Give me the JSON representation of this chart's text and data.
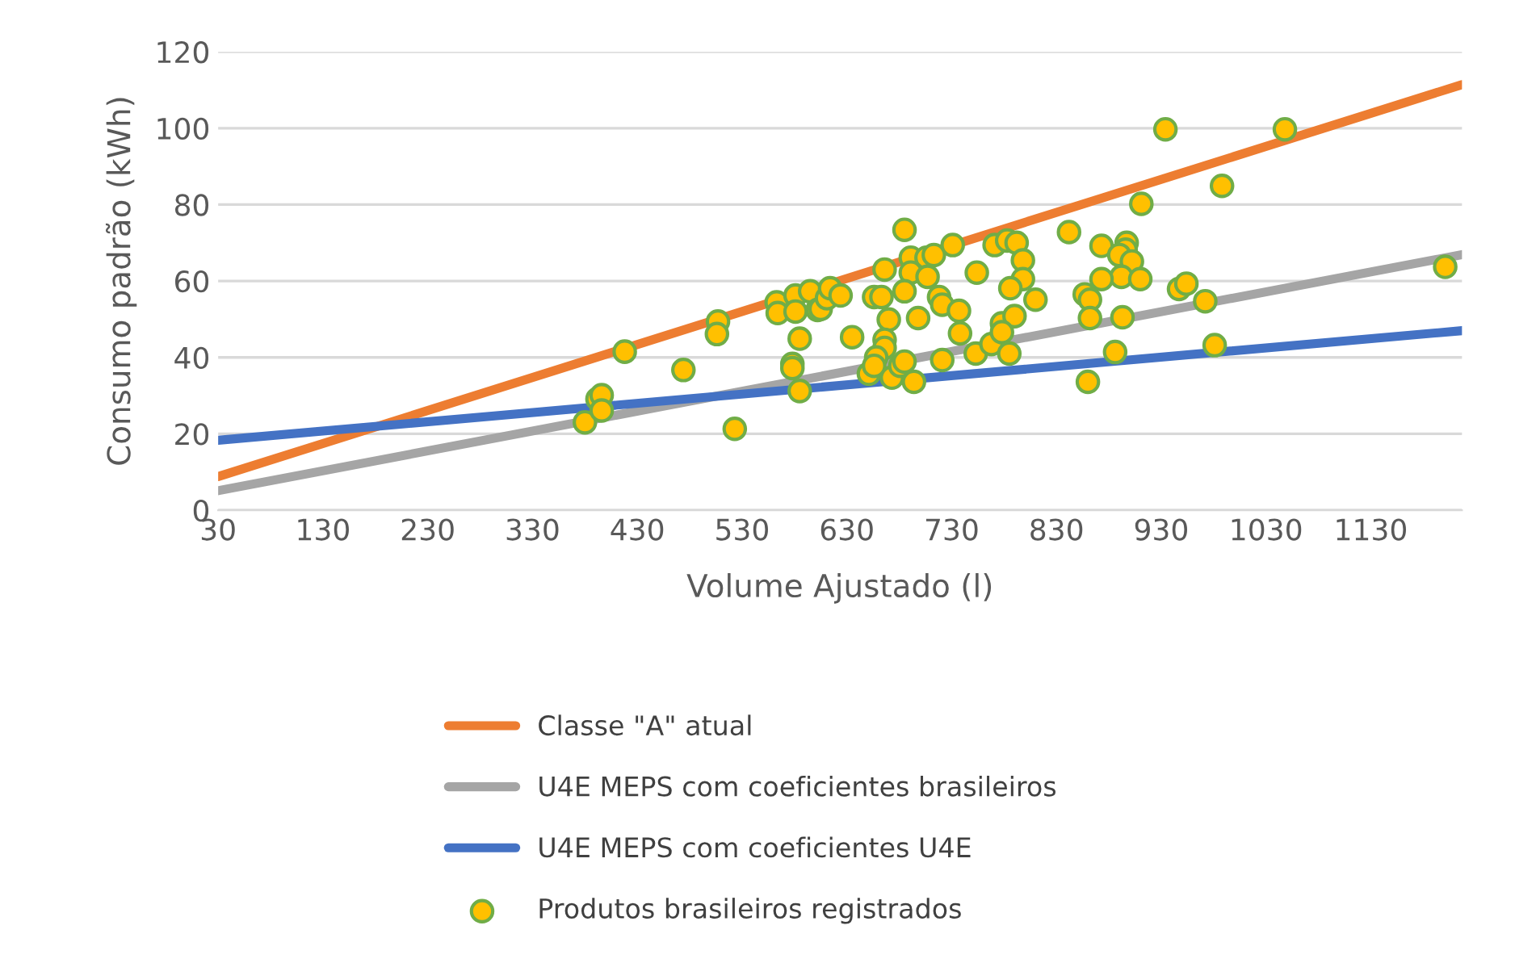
{
  "chart_data": {
    "type": "line",
    "xlabel": "Volume Ajustado (l)",
    "ylabel": "Consumo padrão (kWh)",
    "xlim": [
      30,
      1217
    ],
    "xticks": [
      30,
      130,
      230,
      330,
      430,
      530,
      630,
      730,
      830,
      930,
      1030,
      1130
    ],
    "ylim": [
      0,
      120
    ],
    "yticks": [
      0,
      20,
      40,
      60,
      80,
      100,
      120
    ],
    "grid": "y",
    "legend": "bottom",
    "marker": "none",
    "line_style": "solid",
    "series": [
      {
        "name": "Classe \"A\" atual",
        "color": "#ed7d31",
        "x": [
          30,
          1217
        ],
        "values": [
          8.8,
          111.4
        ]
      },
      {
        "name": "U4E MEPS com coeficientes brasileiros",
        "color": "#a5a5a5",
        "x": [
          30,
          1217
        ],
        "values": [
          5.1,
          66.9
        ]
      },
      {
        "name": "U4E MEPS com coeficientes U4E",
        "color": "#4472c4",
        "x": [
          30,
          1217
        ],
        "values": [
          18.3,
          47.0
        ]
      },
      {
        "name": "Produtos brasileiros registrados",
        "color": "#ffc000",
        "type": "scatter",
        "marker": "circle",
        "x": [
          380,
          392,
          396,
          396,
          418,
          474,
          507,
          506,
          523,
          563,
          564,
          581,
          581,
          578,
          578,
          585,
          585,
          595,
          602,
          605,
          611,
          614,
          624,
          635,
          651,
          656,
          663,
          666,
          670,
          666,
          666,
          658,
          656,
          673,
          681,
          685,
          694,
          685,
          691,
          691,
          685,
          698,
          706,
          707,
          713,
          718,
          721,
          737,
          738,
          721,
          731,
          754,
          753,
          768,
          771,
          783,
          792,
          798,
          798,
          786,
          810,
          778,
          790,
          778,
          785,
          842,
          873,
          897,
          896,
          890,
          902,
          892,
          910,
          873,
          857,
          862,
          862,
          893,
          886,
          860,
          911,
          934,
          1048,
          988,
          947,
          954,
          972,
          981,
          1201
        ],
        "values": [
          23.0,
          29.1,
          30.1,
          26.1,
          41.5,
          36.7,
          49.4,
          46.1,
          21.3,
          54.4,
          51.6,
          56.2,
          52.0,
          38.3,
          37.2,
          44.9,
          31.2,
          57.3,
          52.4,
          52.7,
          55.5,
          58.1,
          56.2,
          45.3,
          35.7,
          55.8,
          55.8,
          63.0,
          49.9,
          44.6,
          42.5,
          40.0,
          37.8,
          34.7,
          37.8,
          38.9,
          33.6,
          73.4,
          66.1,
          62.2,
          57.3,
          50.3,
          66.1,
          61.1,
          66.8,
          55.8,
          53.8,
          52.2,
          46.3,
          39.3,
          69.4,
          62.2,
          41.0,
          43.5,
          69.4,
          70.6,
          70.0,
          65.4,
          60.5,
          58.1,
          55.1,
          48.9,
          50.8,
          46.6,
          41.0,
          72.8,
          69.2,
          70.0,
          68.2,
          66.8,
          65.1,
          61.1,
          60.5,
          60.5,
          56.5,
          55.1,
          50.3,
          50.5,
          41.4,
          33.6,
          80.2,
          99.7,
          99.7,
          84.9,
          57.9,
          59.3,
          54.7,
          43.2,
          63.7
        ]
      }
    ]
  }
}
